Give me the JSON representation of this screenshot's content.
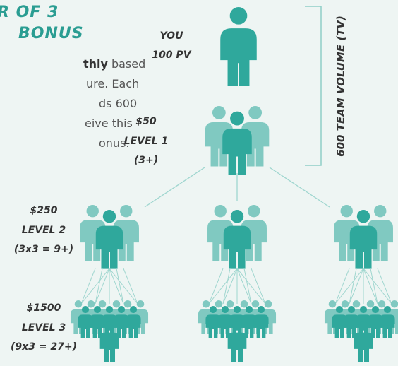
{
  "header": {
    "title_line1": "R OF 3",
    "title_line2": "BONUS"
  },
  "description": {
    "lines": [
      {
        "bold": "thly",
        "rest": "based"
      },
      {
        "text": "ure. Each"
      },
      {
        "text": "ds 600"
      },
      {
        "text": "eive this"
      },
      {
        "text": "onus."
      }
    ]
  },
  "you": {
    "label": "YOU",
    "pv": "100 PV"
  },
  "levels": [
    {
      "amount": "$50",
      "name": "LEVEL 1",
      "count": "(3+)"
    },
    {
      "amount": "$250",
      "name": "LEVEL 2",
      "count": "(3x3 = 9+)"
    },
    {
      "amount": "$1500",
      "name": "LEVEL 3",
      "count": "(9x3 = 27+)"
    }
  ],
  "team_volume": "600 TEAM VOLUME (TV)"
}
